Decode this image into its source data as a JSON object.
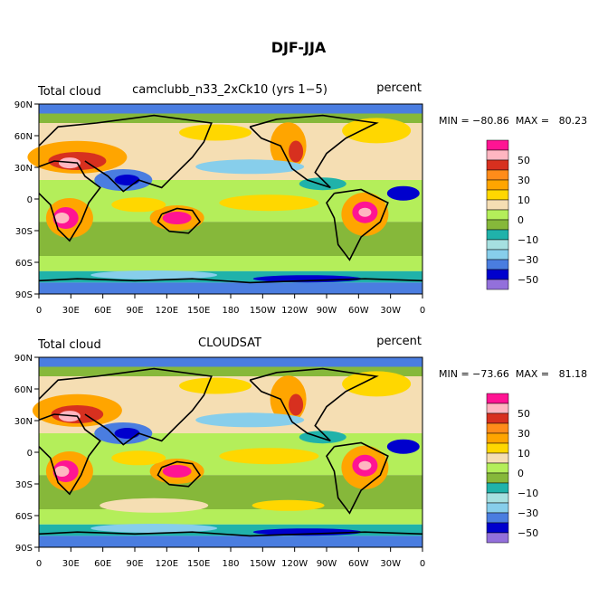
{
  "figure": {
    "title": "DJF-JJA"
  },
  "chart_data": [
    {
      "type": "heatmap",
      "left_title": "Total cloud",
      "center_title": "camclubb_n33_2xCk10 (yrs 1−5)",
      "units": "percent",
      "stats": "MIN = −80.86  MAX =   80.23",
      "min": -80.86,
      "max": 80.23,
      "xticks": [
        "0",
        "30E",
        "60E",
        "90E",
        "120E",
        "150E",
        "180",
        "150W",
        "120W",
        "90W",
        "60W",
        "30W",
        "0"
      ],
      "yticks": [
        "90N",
        "60N",
        "30N",
        "0",
        "30S",
        "60S",
        "90S"
      ]
    },
    {
      "type": "heatmap",
      "left_title": "Total cloud",
      "center_title": "CLOUDSAT",
      "units": "percent",
      "stats": "MIN = −73.66  MAX =   81.18",
      "min": -73.66,
      "max": 81.18,
      "xticks": [
        "0",
        "30E",
        "60E",
        "90E",
        "120E",
        "150E",
        "180",
        "150W",
        "120W",
        "90W",
        "60W",
        "30W",
        "0"
      ],
      "yticks": [
        "90N",
        "60N",
        "30N",
        "0",
        "30S",
        "60S",
        "90S"
      ]
    }
  ],
  "colorbar": {
    "colors": [
      "#ff1493",
      "#ffb6c1",
      "#d7301f",
      "#ff8c1a",
      "#ffa500",
      "#ffd700",
      "#f5deb3",
      "#b4ee5a",
      "#86b83a",
      "#20b2aa",
      "#a6e0e0",
      "#87ceeb",
      "#4a7de0",
      "#0000cd",
      "#9370db"
    ],
    "labels": [
      "50",
      "30",
      "10",
      "0",
      "−10",
      "−30",
      "−50"
    ]
  }
}
